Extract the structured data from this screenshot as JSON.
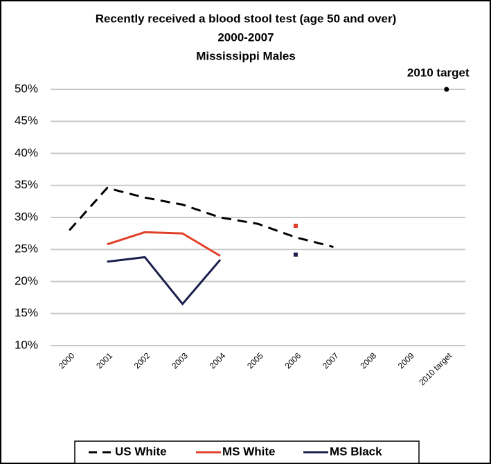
{
  "chart_data": {
    "type": "line",
    "title": [
      "Recently received a blood stool test (age 50 and over)",
      "2000-2007",
      "Mississippi Males"
    ],
    "categories": [
      "2000",
      "2001",
      "2002",
      "2003",
      "2004",
      "2005",
      "2006",
      "2007",
      "2008",
      "2009",
      "2010 target"
    ],
    "series": [
      {
        "name": "US White",
        "color": "#000000",
        "dashed": true,
        "values": [
          28,
          34.6,
          33.1,
          32,
          30,
          29,
          26.9,
          25.4,
          null,
          null,
          null
        ]
      },
      {
        "name": "MS White",
        "color": "#e0402a",
        "values": [
          null,
          25.8,
          27.7,
          27.5,
          24,
          null,
          28.7,
          null,
          null,
          null,
          null
        ]
      },
      {
        "name": "MS Black",
        "color": "#1a1f4d",
        "values": [
          null,
          23.1,
          23.8,
          16.5,
          23.4,
          null,
          24.2,
          null,
          null,
          null,
          null
        ]
      }
    ],
    "annotations": [
      {
        "text": "2010 target",
        "value": 50
      }
    ],
    "ylim": [
      10,
      50
    ],
    "yticks": [
      {
        "value": 10,
        "label": "10%"
      },
      {
        "value": 15,
        "label": "15%"
      },
      {
        "value": 20,
        "label": "20%"
      },
      {
        "value": 25,
        "label": "25%"
      },
      {
        "value": 30,
        "label": "30%"
      },
      {
        "value": 35,
        "label": "35%"
      },
      {
        "value": 40,
        "label": "40%"
      },
      {
        "value": 45,
        "label": "45%"
      },
      {
        "value": 50,
        "label": "50%"
      }
    ],
    "grid": true,
    "legend": "bottom"
  }
}
